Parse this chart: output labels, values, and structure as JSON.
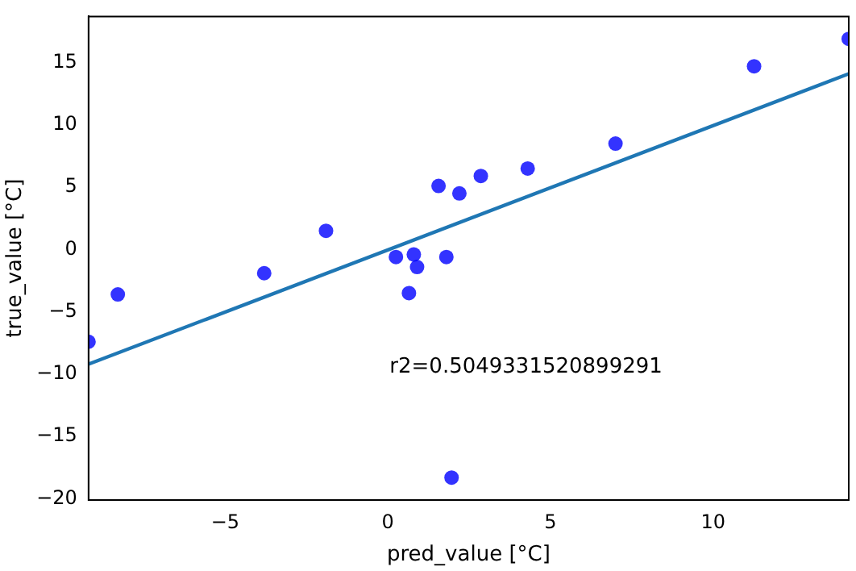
{
  "chart_data": {
    "type": "scatter",
    "xlabel": "pred_value [°C]",
    "ylabel": "true_value [°C]",
    "x": [
      -9.2,
      -8.3,
      -3.8,
      -1.9,
      0.25,
      0.65,
      0.8,
      0.9,
      1.56,
      1.8,
      2.2,
      2.86,
      4.3,
      7.0,
      11.26,
      14.17,
      1.96
    ],
    "series": [
      {
        "color": "#0000ff",
        "marker": "circle",
        "values": [
          -7.4,
          -3.6,
          -1.9,
          1.5,
          -0.6,
          -3.5,
          -0.4,
          -1.4,
          5.1,
          -0.6,
          4.5,
          5.9,
          6.5,
          8.5,
          14.7,
          16.9,
          -18.3
        ]
      },
      {
        "type": "line",
        "marker": "none",
        "color": "#1f77b4",
        "x": [
          -9.2,
          14.17
        ],
        "values": [
          -9.2,
          14.1
        ]
      }
    ],
    "xlim": [
      -9.2,
      14.17
    ],
    "ylim": [
      -20.1,
      18.7
    ],
    "xticks": [
      -5,
      0,
      5,
      10
    ],
    "yticks": [
      -20,
      -15,
      -10,
      -5,
      0,
      5,
      10,
      15
    ],
    "grid": false,
    "legend": false,
    "annotations": [
      "r2=0.5049331520899291"
    ]
  }
}
